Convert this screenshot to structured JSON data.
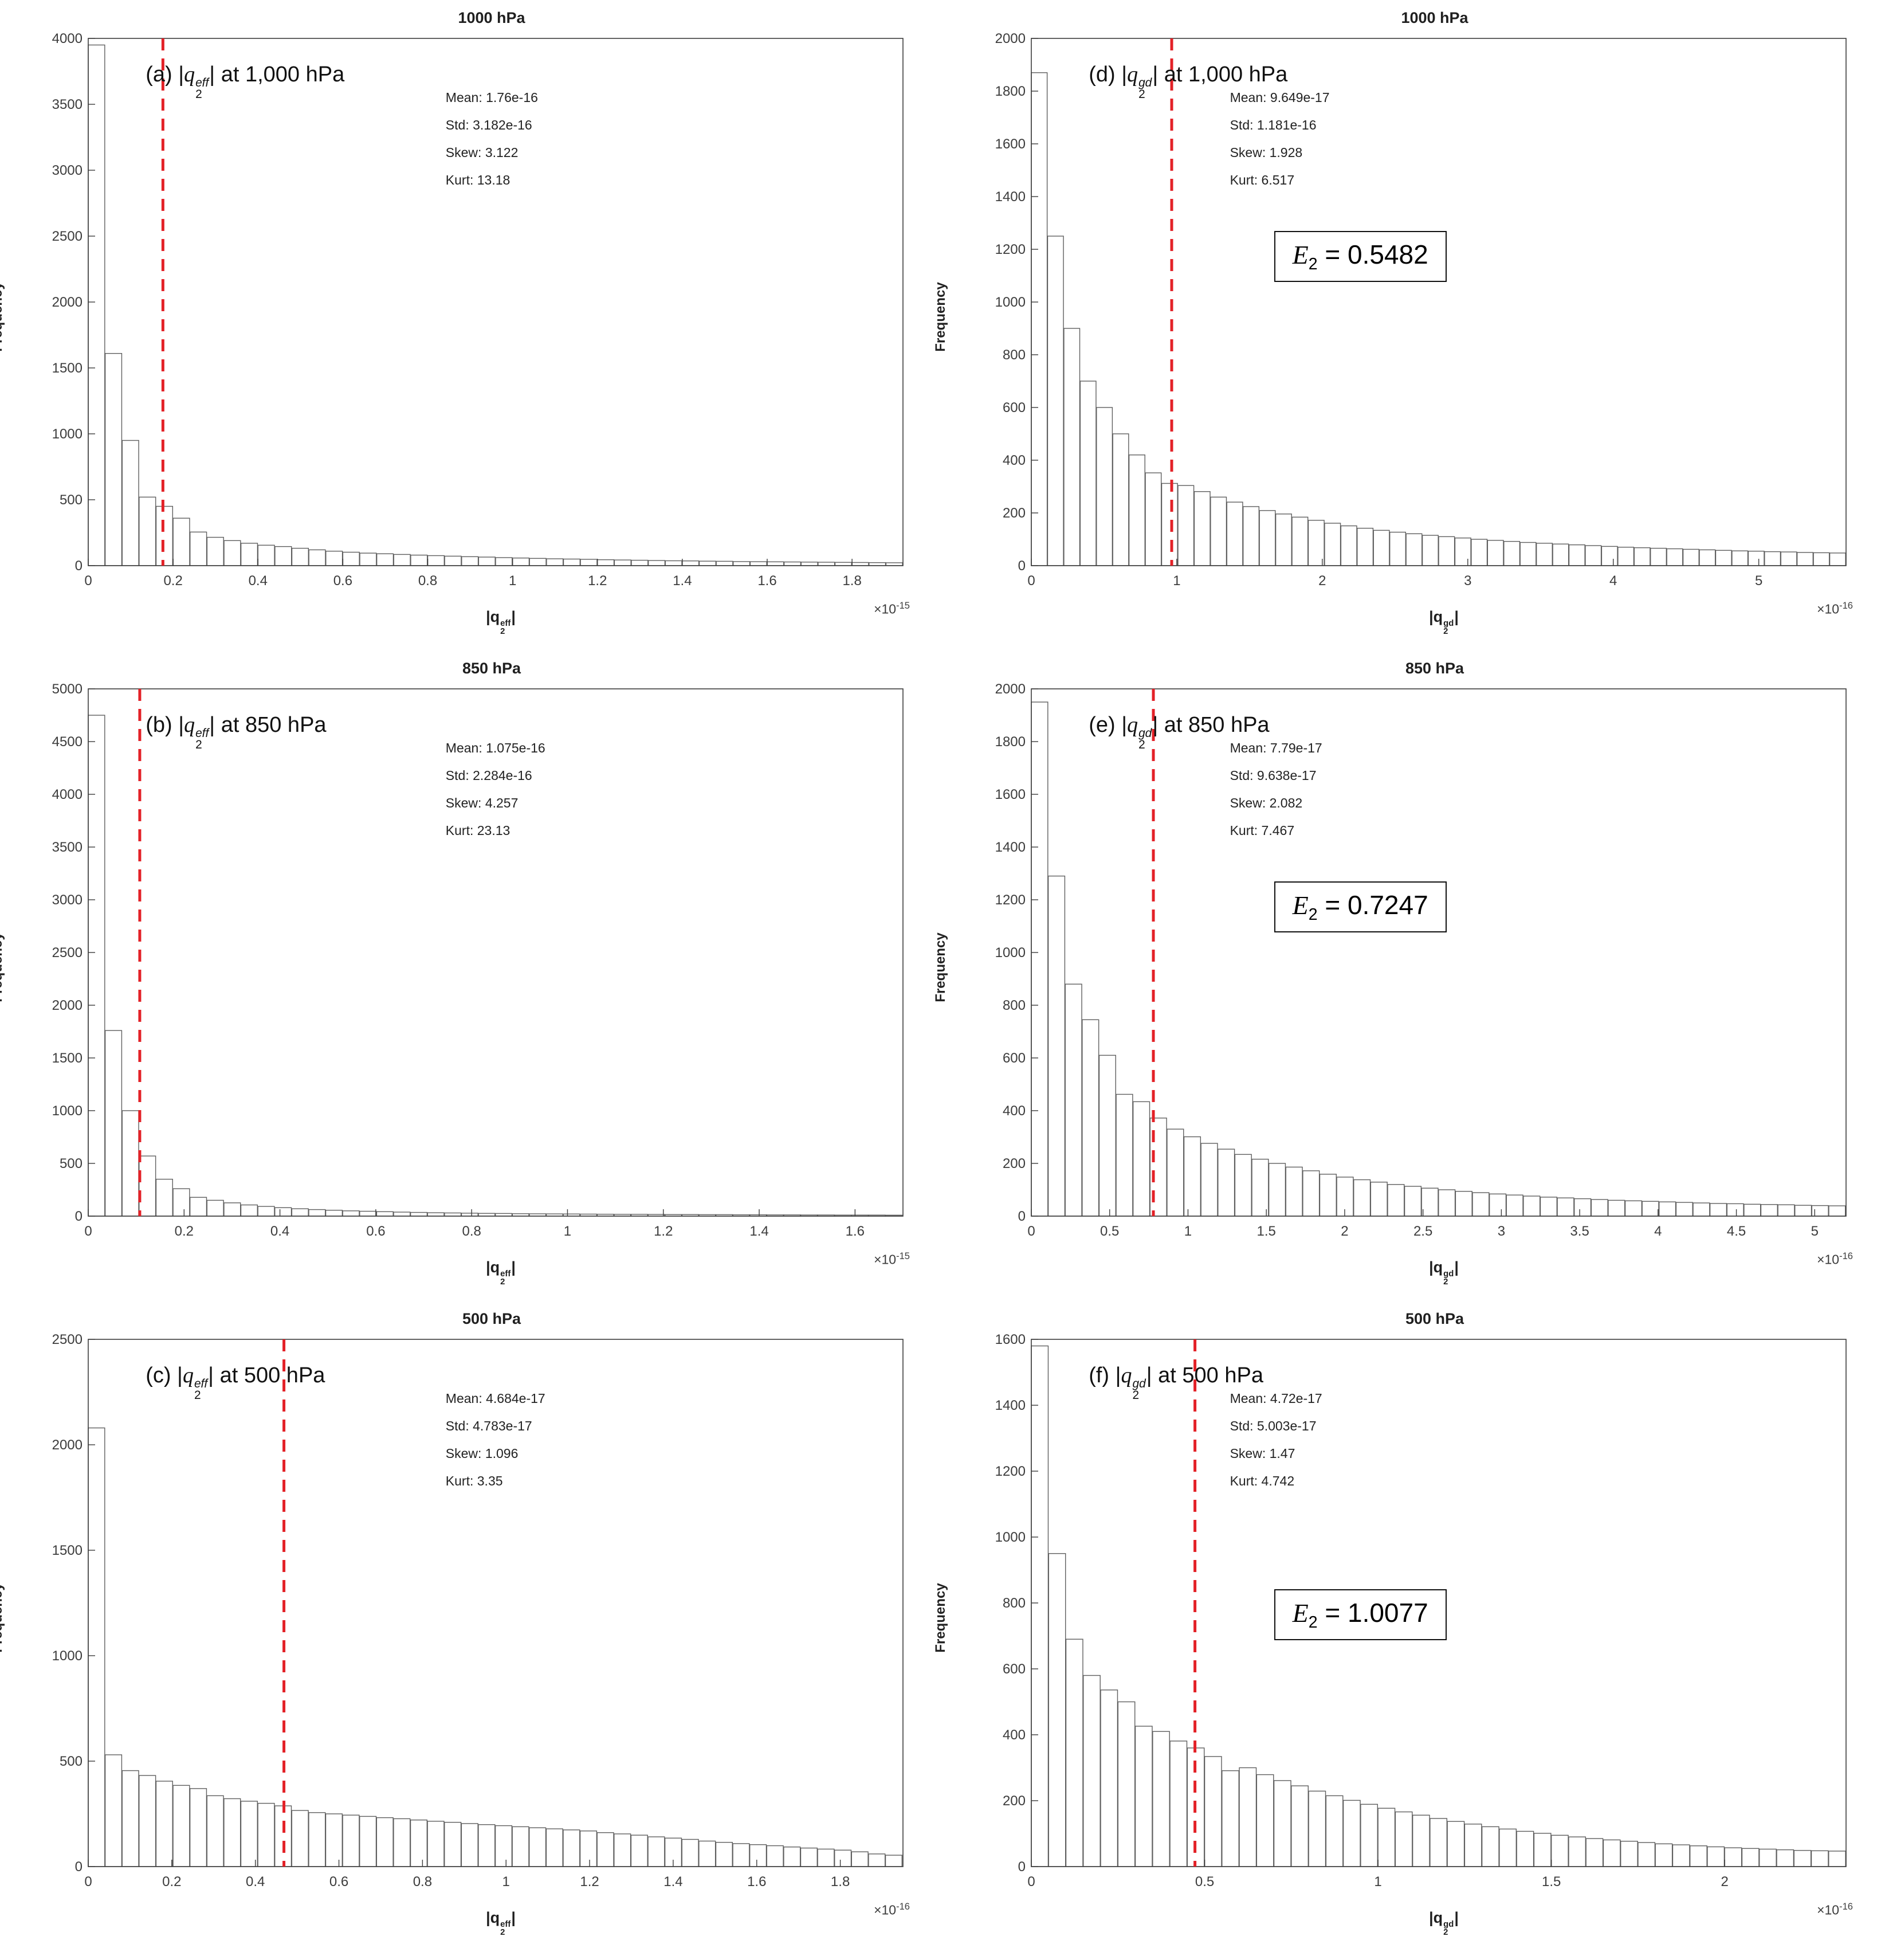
{
  "colors": {
    "mean_line": "#e32127",
    "bar_edge": "#5f5f5f",
    "bar_fill": "#ffffff",
    "axis": "#3c3c3c"
  },
  "panels": [
    {
      "id": "a",
      "title": "1000 hPa",
      "ylabel": "Frequency",
      "annotation_prefix": "(a)  |",
      "var": "q",
      "sup": "eff",
      "sub": "2",
      "annotation_suffix": "| at 1,000 hPa",
      "stats": [
        "Mean: 1.76e-16",
        "Std: 3.182e-16",
        "Skew: 3.122",
        "Kurt: 13.18"
      ],
      "xlabel_prefix": "|q",
      "xlabel_sup": "eff",
      "xlabel_sub": "2",
      "xlabel_suffix": "|",
      "exp_prefix": "×10",
      "exp": "-15"
    },
    {
      "id": "d",
      "title": "1000 hPa",
      "ylabel": "Frequency",
      "annotation_prefix": "(d)  |",
      "var": "q",
      "sup": "gd",
      "sub": "2",
      "annotation_suffix": "| at 1,000 hPa",
      "stats": [
        "Mean: 9.649e-17",
        "Std: 1.181e-16",
        "Skew: 1.928",
        "Kurt: 6.517"
      ],
      "xlabel_prefix": "|q",
      "xlabel_sup": "gd",
      "xlabel_sub": "2",
      "xlabel_suffix": "|",
      "exp_prefix": "×10",
      "exp": "-16",
      "e2": {
        "prefix": "E",
        "sub": "2",
        "rest": " = 0.5482"
      }
    },
    {
      "id": "b",
      "title": "850 hPa",
      "ylabel": "Frequency",
      "annotation_prefix": "(b)  |",
      "var": "q",
      "sup": "eff",
      "sub": "2",
      "annotation_suffix": "| at 850 hPa",
      "stats": [
        "Mean: 1.075e-16",
        "Std: 2.284e-16",
        "Skew: 4.257",
        "Kurt: 23.13"
      ],
      "xlabel_prefix": "|q",
      "xlabel_sup": "eff",
      "xlabel_sub": "2",
      "xlabel_suffix": "|",
      "exp_prefix": "×10",
      "exp": "-15"
    },
    {
      "id": "e",
      "title": "850 hPa",
      "ylabel": "Frequency",
      "annotation_prefix": "(e)  |",
      "var": "q",
      "sup": "gd",
      "sub": "2",
      "annotation_suffix": "| at 850 hPa",
      "stats": [
        "Mean: 7.79e-17",
        "Std: 9.638e-17",
        "Skew: 2.082",
        "Kurt: 7.467"
      ],
      "xlabel_prefix": "|q",
      "xlabel_sup": "gd",
      "xlabel_sub": "2",
      "xlabel_suffix": "|",
      "exp_prefix": "×10",
      "exp": "-16",
      "e2": {
        "prefix": "E",
        "sub": "2",
        "rest": " = 0.7247"
      }
    },
    {
      "id": "c",
      "title": "500 hPa",
      "ylabel": "Frequency",
      "annotation_prefix": "(c)  |",
      "var": "q",
      "sup": "eff",
      "sub": "2",
      "annotation_suffix": "| at 500 hPa",
      "stats": [
        "Mean: 4.684e-17",
        "Std: 4.783e-17",
        "Skew: 1.096",
        "Kurt: 3.35"
      ],
      "xlabel_prefix": "|q",
      "xlabel_sup": "eff",
      "xlabel_sub": "2",
      "xlabel_suffix": "|",
      "exp_prefix": "×10",
      "exp": "-16"
    },
    {
      "id": "f",
      "title": "500 hPa",
      "ylabel": "Frequency",
      "annotation_prefix": "(f)  |",
      "var": "q",
      "sup": "gd",
      "sub": "2",
      "annotation_suffix": "| at 500 hPa",
      "stats": [
        "Mean: 4.72e-17",
        "Std: 5.003e-17",
        "Skew: 1.47",
        "Kurt: 4.742"
      ],
      "xlabel_prefix": "|q",
      "xlabel_sup": "gd",
      "xlabel_sub": "2",
      "xlabel_suffix": "|",
      "exp_prefix": "×10",
      "exp": "-16",
      "e2": {
        "prefix": "E",
        "sub": "2",
        "rest": " = 1.0077"
      }
    }
  ],
  "chart_data": [
    {
      "type": "bar",
      "subtype": "histogram",
      "title": "1000 hPa",
      "xlabel": "|q_2^eff|",
      "ylabel": "Frequency",
      "x_scale_label": "x10^-15",
      "xlim": [
        0,
        1.92
      ],
      "ylim": [
        0,
        4000
      ],
      "xticks": [
        0,
        0.2,
        0.4,
        0.6,
        0.8,
        1,
        1.2,
        1.4,
        1.6,
        1.8
      ],
      "yticks": [
        0,
        500,
        1000,
        1500,
        2000,
        2500,
        3000,
        3500,
        4000
      ],
      "bin_width": 0.04,
      "mean_line_x": 0.176,
      "stats": {
        "mean": "1.76e-16",
        "std": "3.182e-16",
        "skew": 3.122,
        "kurt": 13.18
      },
      "values": [
        3950,
        1610,
        950,
        520,
        450,
        360,
        255,
        215,
        190,
        170,
        155,
        145,
        132,
        120,
        110,
        102,
        95,
        90,
        85,
        80,
        76,
        72,
        68,
        65,
        61,
        58,
        55,
        52,
        50,
        48,
        45,
        43,
        41,
        39,
        37,
        36,
        34,
        33,
        31,
        30,
        29,
        28,
        27,
        26,
        25,
        24,
        23,
        22
      ]
    },
    {
      "type": "bar",
      "subtype": "histogram",
      "title": "1000 hPa",
      "xlabel": "|q_2^gd|",
      "ylabel": "Frequency",
      "x_scale_label": "x10^-16",
      "xlim": [
        0,
        5.6
      ],
      "ylim": [
        0,
        2000
      ],
      "xticks": [
        0,
        1,
        2,
        3,
        4,
        5
      ],
      "yticks": [
        0,
        200,
        400,
        600,
        800,
        1000,
        1200,
        1400,
        1600,
        1800,
        2000
      ],
      "bin_width": 0.112,
      "mean_line_x": 0.9649,
      "e2": 0.5482,
      "stats": {
        "mean": "9.649e-17",
        "std": "1.181e-16",
        "skew": 1.928,
        "kurt": 6.517
      },
      "values": [
        1870,
        1250,
        900,
        700,
        600,
        500,
        420,
        352,
        312,
        304,
        281,
        260,
        241,
        224,
        209,
        196,
        184,
        172,
        161,
        151,
        142,
        134,
        127,
        121,
        115,
        110,
        105,
        100,
        96,
        92,
        88,
        85,
        82,
        79,
        76,
        73,
        70,
        68,
        66,
        64,
        62,
        60,
        58,
        56,
        55,
        53,
        52,
        50,
        49,
        48
      ]
    },
    {
      "type": "bar",
      "subtype": "histogram",
      "title": "850 hPa",
      "xlabel": "|q_2^eff|",
      "ylabel": "Frequency",
      "x_scale_label": "x10^-15",
      "xlim": [
        0,
        1.7
      ],
      "ylim": [
        0,
        5000
      ],
      "xticks": [
        0,
        0.2,
        0.4,
        0.6,
        0.8,
        1,
        1.2,
        1.4,
        1.6
      ],
      "yticks": [
        0,
        500,
        1000,
        1500,
        2000,
        2500,
        3000,
        3500,
        4000,
        4500,
        5000
      ],
      "bin_width": 0.0354,
      "mean_line_x": 0.1075,
      "stats": {
        "mean": "1.075e-16",
        "std": "2.284e-16",
        "skew": 4.257,
        "kurt": 23.13
      },
      "values": [
        4750,
        1760,
        1000,
        570,
        350,
        260,
        178,
        150,
        126,
        106,
        92,
        80,
        70,
        62,
        56,
        50,
        46,
        42,
        38,
        35,
        32,
        30,
        28,
        26,
        25,
        23,
        22,
        21,
        20,
        19,
        18,
        17,
        17,
        16,
        15,
        15,
        14,
        14,
        13,
        13,
        12,
        12,
        11,
        11,
        10,
        10,
        10,
        9
      ]
    },
    {
      "type": "bar",
      "subtype": "histogram",
      "title": "850 hPa",
      "xlabel": "|q_2^gd|",
      "ylabel": "Frequency",
      "x_scale_label": "x10^-16",
      "xlim": [
        0,
        5.2
      ],
      "ylim": [
        0,
        2000
      ],
      "xticks": [
        0,
        0.5,
        1,
        1.5,
        2,
        2.5,
        3,
        3.5,
        4,
        4.5,
        5
      ],
      "yticks": [
        0,
        200,
        400,
        600,
        800,
        1000,
        1200,
        1400,
        1600,
        1800,
        2000
      ],
      "bin_width": 0.1083,
      "mean_line_x": 0.779,
      "e2": 0.7247,
      "stats": {
        "mean": "7.79e-17",
        "std": "9.638e-17",
        "skew": 2.082,
        "kurt": 7.467
      },
      "values": [
        1950,
        1290,
        880,
        745,
        610,
        462,
        434,
        372,
        330,
        301,
        276,
        254,
        234,
        216,
        200,
        186,
        172,
        159,
        148,
        138,
        129,
        120,
        113,
        106,
        100,
        94,
        89,
        84,
        80,
        76,
        72,
        69,
        66,
        63,
        60,
        58,
        56,
        54,
        52,
        50,
        48,
        47,
        45,
        44,
        43,
        41,
        40,
        39
      ]
    },
    {
      "type": "bar",
      "subtype": "histogram",
      "title": "500 hPa",
      "xlabel": "|q_2^eff|",
      "ylabel": "Frequency",
      "x_scale_label": "x10^-16",
      "xlim": [
        0,
        1.95
      ],
      "ylim": [
        0,
        2500
      ],
      "xticks": [
        0,
        0.2,
        0.4,
        0.6,
        0.8,
        1,
        1.2,
        1.4,
        1.6,
        1.8
      ],
      "yticks": [
        0,
        500,
        1000,
        1500,
        2000,
        2500
      ],
      "bin_width": 0.0406,
      "mean_line_x": 0.4684,
      "stats": {
        "mean": "4.684e-17",
        "std": "4.783e-17",
        "skew": 1.096,
        "kurt": 3.35
      },
      "values": [
        2080,
        530,
        455,
        432,
        405,
        385,
        370,
        336,
        322,
        310,
        300,
        288,
        266,
        256,
        250,
        244,
        238,
        232,
        227,
        221,
        215,
        210,
        204,
        199,
        194,
        189,
        184,
        179,
        174,
        169,
        161,
        155,
        149,
        141,
        135,
        129,
        121,
        115,
        109,
        104,
        99,
        93,
        88,
        83,
        78,
        70,
        60,
        54
      ]
    },
    {
      "type": "bar",
      "subtype": "histogram",
      "title": "500 hPa",
      "xlabel": "|q_2^gd|",
      "ylabel": "Frequency",
      "x_scale_label": "x10^-16",
      "xlim": [
        0,
        2.35
      ],
      "ylim": [
        0,
        1600
      ],
      "xticks": [
        0,
        0.5,
        1,
        1.5,
        2
      ],
      "yticks": [
        0,
        200,
        400,
        600,
        800,
        1000,
        1200,
        1400,
        1600
      ],
      "bin_width": 0.05,
      "mean_line_x": 0.472,
      "e2": 1.0077,
      "stats": {
        "mean": "4.72e-17",
        "std": "5.003e-17",
        "skew": 1.47,
        "kurt": 4.742
      },
      "values": [
        1580,
        950,
        690,
        580,
        536,
        500,
        426,
        410,
        381,
        360,
        334,
        291,
        300,
        279,
        261,
        245,
        229,
        215,
        201,
        189,
        177,
        166,
        156,
        146,
        137,
        129,
        121,
        114,
        107,
        101,
        95,
        90,
        85,
        81,
        77,
        73,
        69,
        66,
        63,
        60,
        57,
        55,
        53,
        51,
        49,
        48,
        47
      ]
    }
  ]
}
